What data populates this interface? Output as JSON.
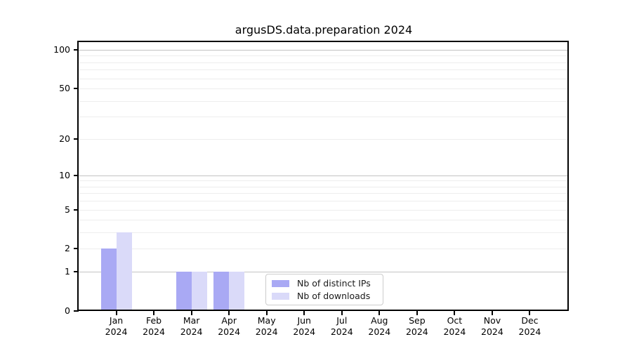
{
  "title": "argusDS.data.preparation 2024",
  "chart_data": {
    "type": "bar",
    "title": "argusDS.data.preparation 2024",
    "categories": [
      "Jan",
      "Feb",
      "Mar",
      "Apr",
      "May",
      "Jun",
      "Jul",
      "Aug",
      "Sep",
      "Oct",
      "Nov",
      "Dec"
    ],
    "x_year_label": "2024",
    "series": [
      {
        "name": "Nb of distinct IPs",
        "color": "#a9a9f4",
        "values": [
          2,
          0,
          1,
          1,
          0,
          0,
          0,
          0,
          0,
          0,
          0,
          0
        ]
      },
      {
        "name": "Nb of downloads",
        "color": "#dadaf9",
        "values": [
          3,
          0,
          1,
          1,
          0,
          0,
          0,
          0,
          0,
          0,
          0,
          0
        ]
      }
    ],
    "y_scale": "log10(1+v)",
    "y_ticks": [
      "0",
      "1",
      "2",
      "5",
      "10",
      "20",
      "50",
      "100"
    ],
    "y_tick_values": [
      0,
      1,
      2,
      5,
      10,
      20,
      50,
      100
    ],
    "y_major_gridlines": [
      1,
      10,
      100
    ],
    "y_minor_gridlines": [
      2,
      3,
      4,
      5,
      6,
      7,
      8,
      9,
      20,
      30,
      40,
      50,
      60,
      70,
      80,
      90
    ],
    "ylim": [
      0,
      114.6
    ],
    "grid": "on",
    "legend_position": "lower center",
    "colors": {
      "bar_distinct_ips": "#a9a9f4",
      "bar_downloads": "#dadaf9",
      "grid_major": "#c3c3c3",
      "grid_minor": "#ededed",
      "axis": "#000000",
      "legend_border": "#cccccc"
    }
  }
}
